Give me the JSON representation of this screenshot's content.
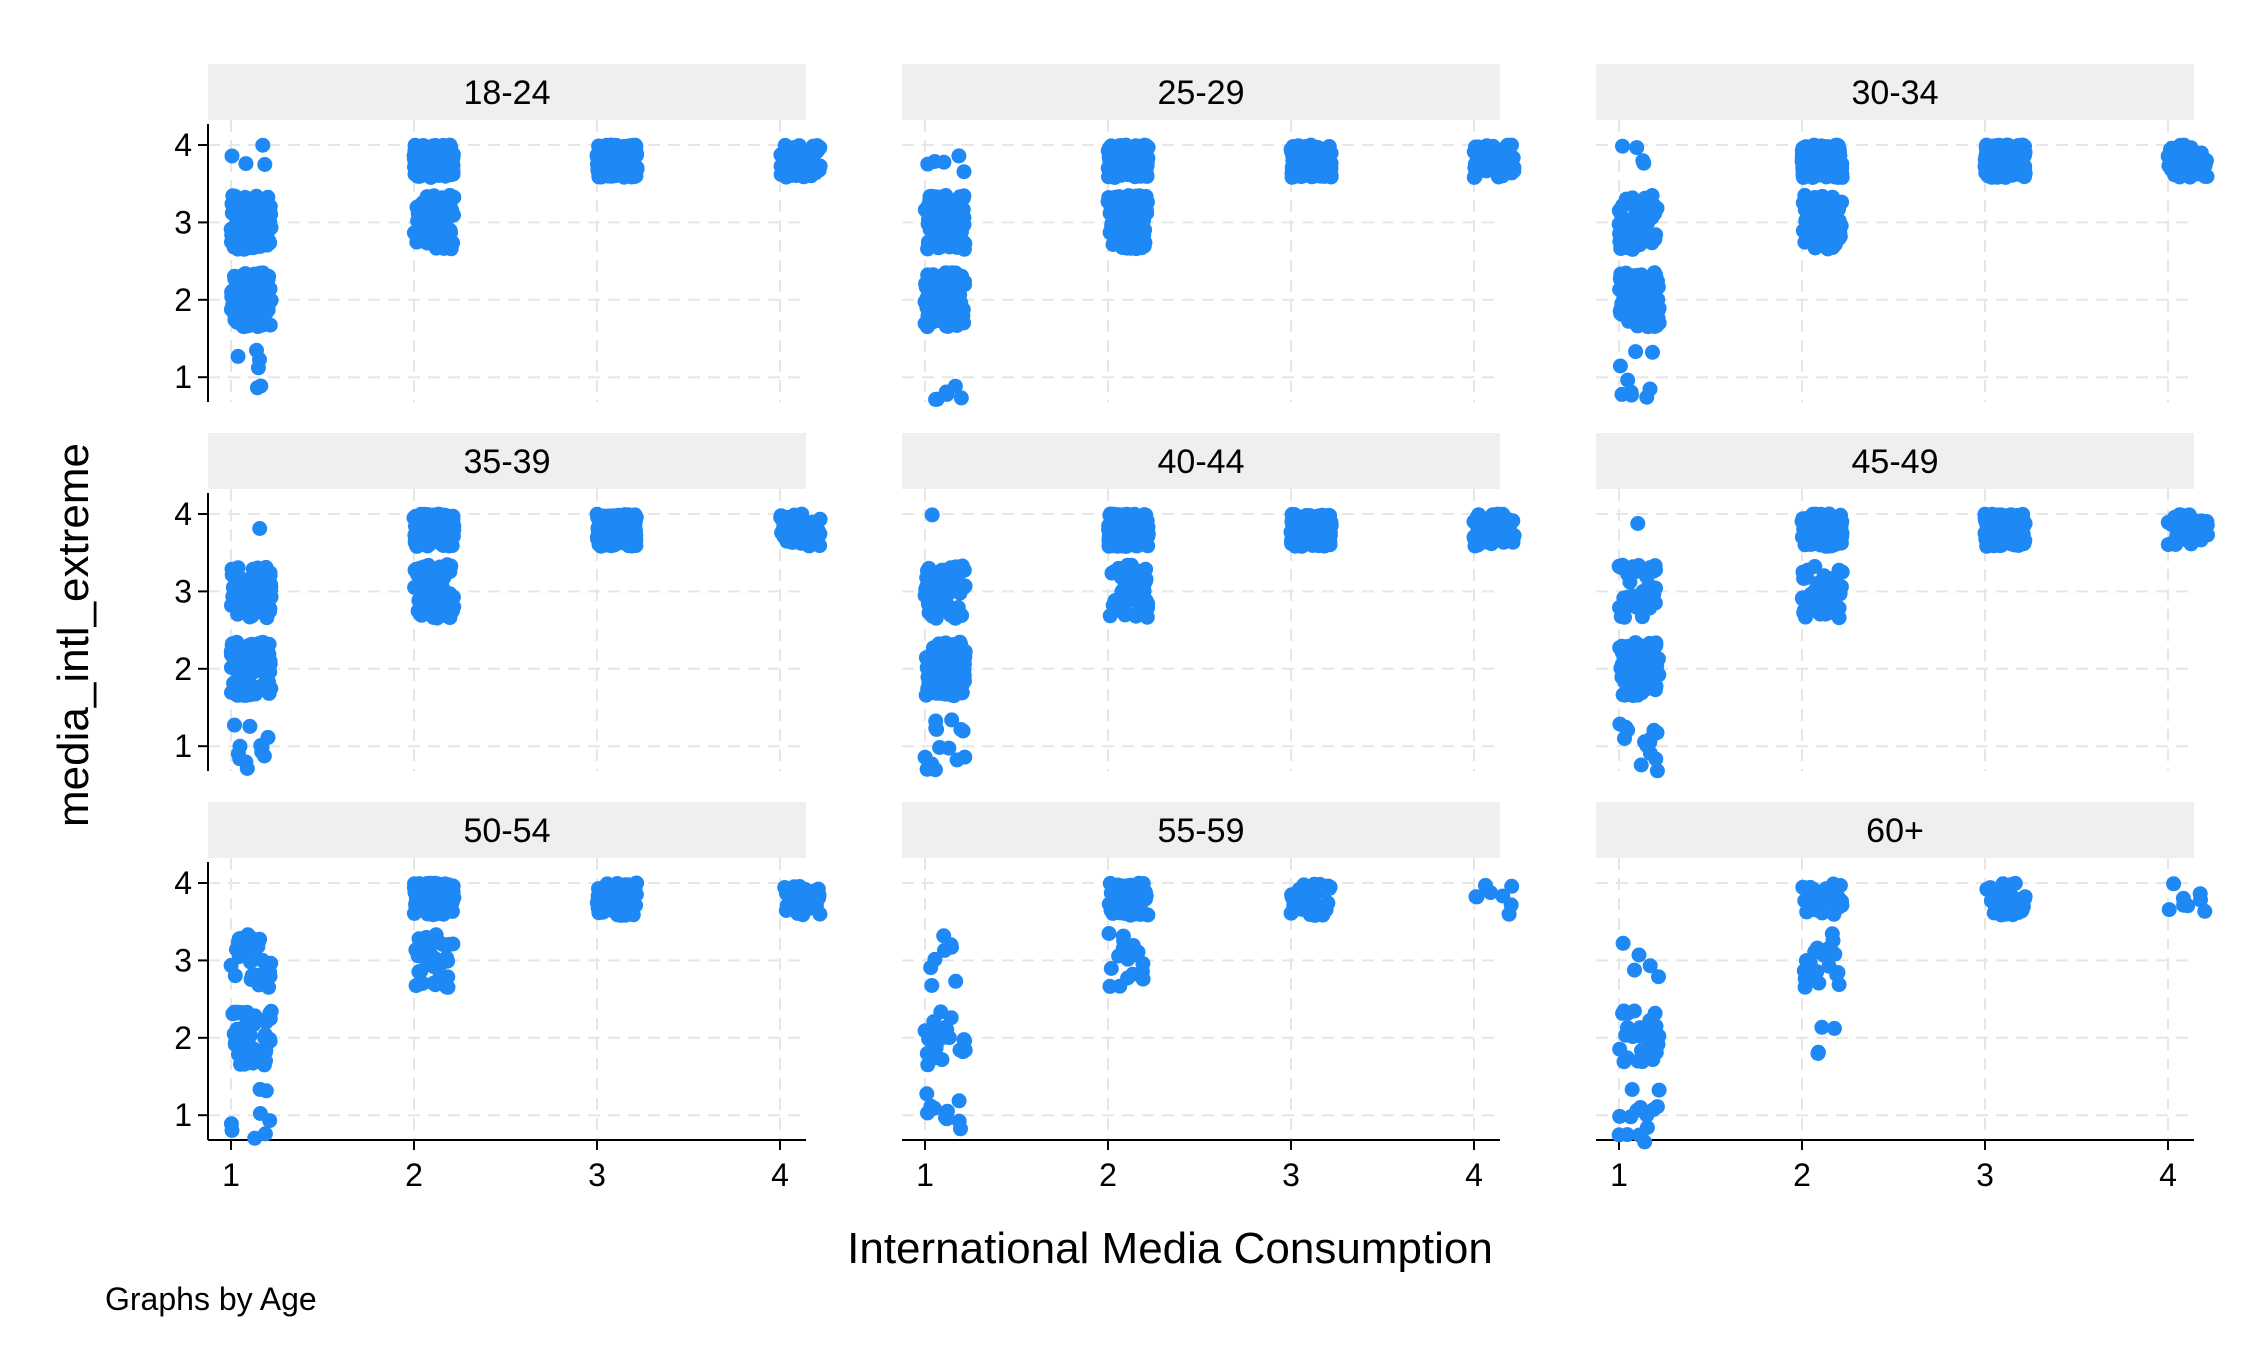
{
  "chart_data": {
    "type": "scatter",
    "xlabel": "International Media Consumption",
    "ylabel": "media_intl_extreme",
    "note": "Graphs by Age",
    "x_ticks": [
      1,
      2,
      3,
      4
    ],
    "y_ticks": [
      1,
      2,
      3,
      4
    ],
    "xlim": [
      0.9,
      4.15
    ],
    "ylim": [
      0.7,
      4.3
    ],
    "grid": true,
    "jitter": true,
    "marker_color": "#1E88F5",
    "strip_color": "#EFEFEF",
    "panels": [
      {
        "label": "18-24",
        "counts": [
          {
            "x": 1,
            "y": 1,
            "n": 6
          },
          {
            "x": 1,
            "y": 2,
            "n": 130
          },
          {
            "x": 1,
            "y": 3,
            "n": 110
          },
          {
            "x": 1,
            "y": 4,
            "n": 4
          },
          {
            "x": 2,
            "y": 3,
            "n": 70
          },
          {
            "x": 2,
            "y": 4,
            "n": 180
          },
          {
            "x": 3,
            "y": 4,
            "n": 200
          },
          {
            "x": 4,
            "y": 4,
            "n": 70
          }
        ]
      },
      {
        "label": "25-29",
        "counts": [
          {
            "x": 1,
            "y": 1,
            "n": 6
          },
          {
            "x": 1,
            "y": 2,
            "n": 110
          },
          {
            "x": 1,
            "y": 3,
            "n": 90
          },
          {
            "x": 1,
            "y": 4,
            "n": 5
          },
          {
            "x": 2,
            "y": 3,
            "n": 140
          },
          {
            "x": 2,
            "y": 4,
            "n": 190
          },
          {
            "x": 3,
            "y": 4,
            "n": 190
          },
          {
            "x": 4,
            "y": 4,
            "n": 60
          }
        ]
      },
      {
        "label": "30-34",
        "counts": [
          {
            "x": 1,
            "y": 1,
            "n": 9
          },
          {
            "x": 1,
            "y": 2,
            "n": 110
          },
          {
            "x": 1,
            "y": 3,
            "n": 60
          },
          {
            "x": 1,
            "y": 4,
            "n": 4
          },
          {
            "x": 2,
            "y": 3,
            "n": 80
          },
          {
            "x": 2,
            "y": 4,
            "n": 180
          },
          {
            "x": 3,
            "y": 4,
            "n": 190
          },
          {
            "x": 4,
            "y": 4,
            "n": 60
          }
        ]
      },
      {
        "label": "35-39",
        "counts": [
          {
            "x": 1,
            "y": 1,
            "n": 12
          },
          {
            "x": 1,
            "y": 2,
            "n": 110
          },
          {
            "x": 1,
            "y": 3,
            "n": 75
          },
          {
            "x": 1,
            "y": 4,
            "n": 1
          },
          {
            "x": 2,
            "y": 3,
            "n": 90
          },
          {
            "x": 2,
            "y": 4,
            "n": 180
          },
          {
            "x": 3,
            "y": 4,
            "n": 170
          },
          {
            "x": 4,
            "y": 4,
            "n": 50
          }
        ]
      },
      {
        "label": "40-44",
        "counts": [
          {
            "x": 1,
            "y": 1,
            "n": 14
          },
          {
            "x": 1,
            "y": 2,
            "n": 95
          },
          {
            "x": 1,
            "y": 3,
            "n": 55
          },
          {
            "x": 1,
            "y": 4,
            "n": 1
          },
          {
            "x": 2,
            "y": 3,
            "n": 60
          },
          {
            "x": 2,
            "y": 4,
            "n": 170
          },
          {
            "x": 3,
            "y": 4,
            "n": 170
          },
          {
            "x": 4,
            "y": 4,
            "n": 50
          }
        ]
      },
      {
        "label": "45-49",
        "counts": [
          {
            "x": 1,
            "y": 1,
            "n": 14
          },
          {
            "x": 1,
            "y": 2,
            "n": 90
          },
          {
            "x": 1,
            "y": 3,
            "n": 45
          },
          {
            "x": 1,
            "y": 4,
            "n": 1
          },
          {
            "x": 2,
            "y": 3,
            "n": 50
          },
          {
            "x": 2,
            "y": 4,
            "n": 170
          },
          {
            "x": 3,
            "y": 4,
            "n": 160
          },
          {
            "x": 4,
            "y": 4,
            "n": 40
          }
        ]
      },
      {
        "label": "50-54",
        "counts": [
          {
            "x": 1,
            "y": 1,
            "n": 8
          },
          {
            "x": 1,
            "y": 2,
            "n": 60
          },
          {
            "x": 1,
            "y": 3,
            "n": 30
          },
          {
            "x": 2,
            "y": 3,
            "n": 35
          },
          {
            "x": 2,
            "y": 4,
            "n": 140
          },
          {
            "x": 3,
            "y": 4,
            "n": 100
          },
          {
            "x": 4,
            "y": 4,
            "n": 35
          }
        ]
      },
      {
        "label": "55-59",
        "counts": [
          {
            "x": 1,
            "y": 1,
            "n": 10
          },
          {
            "x": 1,
            "y": 2,
            "n": 25
          },
          {
            "x": 1,
            "y": 3,
            "n": 8
          },
          {
            "x": 2,
            "y": 3,
            "n": 18
          },
          {
            "x": 2,
            "y": 4,
            "n": 55
          },
          {
            "x": 3,
            "y": 4,
            "n": 40
          },
          {
            "x": 4,
            "y": 4,
            "n": 8
          }
        ]
      },
      {
        "label": "60+",
        "counts": [
          {
            "x": 1,
            "y": 1,
            "n": 14
          },
          {
            "x": 1,
            "y": 2,
            "n": 30
          },
          {
            "x": 1,
            "y": 3,
            "n": 5
          },
          {
            "x": 2,
            "y": 2,
            "n": 4
          },
          {
            "x": 2,
            "y": 3,
            "n": 20
          },
          {
            "x": 2,
            "y": 4,
            "n": 35
          },
          {
            "x": 3,
            "y": 4,
            "n": 30
          },
          {
            "x": 4,
            "y": 4,
            "n": 8
          }
        ]
      }
    ]
  }
}
